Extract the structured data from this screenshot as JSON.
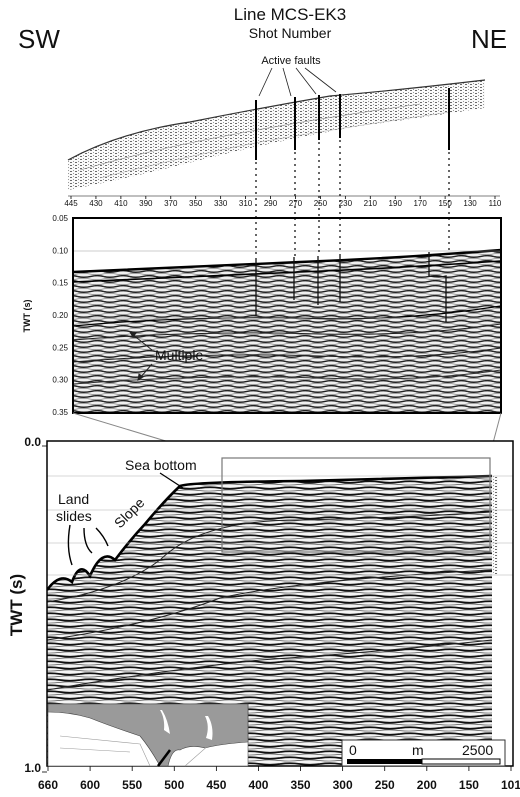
{
  "header": {
    "title_line1": "Line MCS-EK3",
    "title_line2": "Shot Number",
    "left_direction": "SW",
    "right_direction": "NE"
  },
  "annotations": {
    "active_faults": "Active faults",
    "multiple": "Multiple",
    "sea_bottom": "Sea bottom",
    "land_slides_line1": "Land",
    "land_slides_line2": "slides",
    "slope": "Slope"
  },
  "top_axis": {
    "shot_numbers": [
      "445",
      "430",
      "410",
      "390",
      "370",
      "350",
      "330",
      "310",
      "290",
      "270",
      "250",
      "230",
      "210",
      "190",
      "170",
      "150",
      "130",
      "110"
    ]
  },
  "middle_panel": {
    "y_label": "TWT (s)",
    "y_ticks": [
      "0.05",
      "0.10",
      "0.15",
      "0.20",
      "0.25",
      "0.30",
      "0.35"
    ]
  },
  "bottom_panel": {
    "y_label": "TWT (s)",
    "y_ticks": [
      "0.0",
      "1.0"
    ],
    "x_ticks": [
      "660",
      "600",
      "550",
      "500",
      "450",
      "400",
      "350",
      "300",
      "250",
      "200",
      "150",
      "101"
    ]
  },
  "scale_bar": {
    "start": "0",
    "unit": "m",
    "end": "2500"
  },
  "colors": {
    "seismic_dark": "#1a1a1a",
    "seismic_light": "#f2f2f2",
    "map_land": "#9a9a9a",
    "frame": "#000000"
  }
}
